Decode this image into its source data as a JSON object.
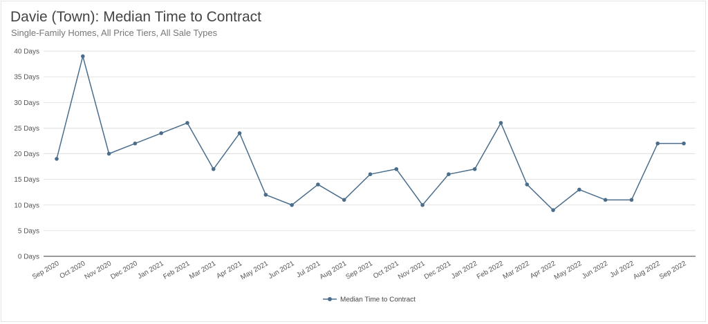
{
  "chart_data": {
    "type": "line",
    "title": "Davie (Town): Median Time to Contract",
    "subtitle": "Single-Family Homes, All Price Tiers, All Sale Types",
    "categories": [
      "Sep 2020",
      "Oct 2020",
      "Nov 2020",
      "Dec 2020",
      "Jan 2021",
      "Feb 2021",
      "Mar 2021",
      "Apr 2021",
      "May 2021",
      "Jun 2021",
      "Jul 2021",
      "Aug 2021",
      "Sep 2021",
      "Oct 2021",
      "Nov 2021",
      "Dec 2021",
      "Jan 2022",
      "Feb 2022",
      "Mar 2022",
      "Apr 2022",
      "May 2022",
      "Jun 2022",
      "Jul 2022",
      "Aug 2022",
      "Sep 2022"
    ],
    "series": [
      {
        "name": "Median Time to Contract",
        "values": [
          19,
          39,
          20,
          22,
          24,
          26,
          17,
          24,
          12,
          10,
          14,
          11,
          16,
          17,
          10,
          16,
          17,
          26,
          14,
          9,
          13,
          11,
          11,
          22,
          22
        ],
        "color": "#4a6d8c"
      }
    ],
    "yticks": [
      "0 Days",
      "5 Days",
      "10 Days",
      "15 Days",
      "20 Days",
      "25 Days",
      "30 Days",
      "35 Days",
      "40 Days"
    ],
    "ylim": [
      0,
      40
    ],
    "grid": true,
    "legend": "bottom-center"
  }
}
